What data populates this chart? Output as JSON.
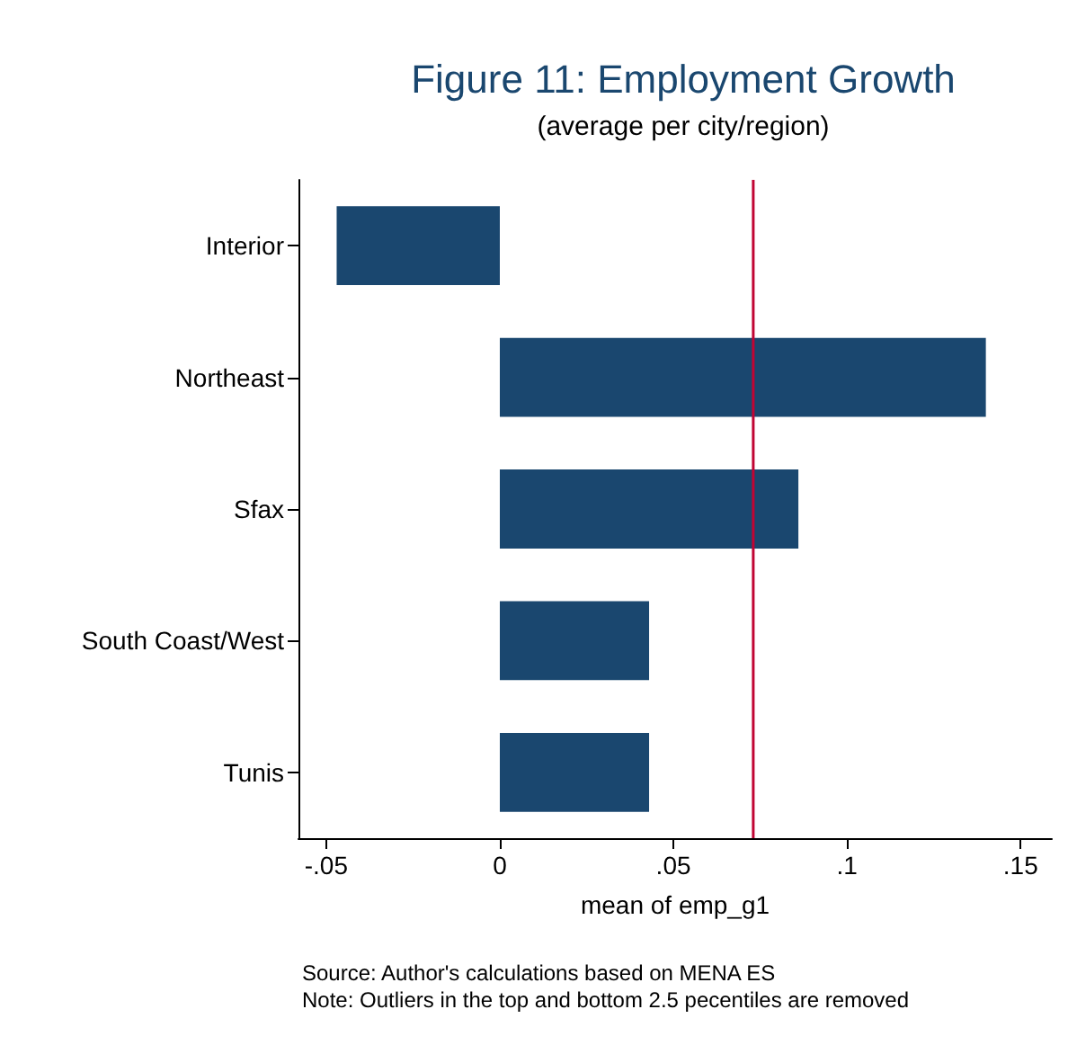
{
  "chart_data": {
    "type": "bar",
    "orientation": "horizontal",
    "title": "Figure 11: Employment Growth",
    "subtitle": "(average per city/region)",
    "xlabel": "mean of emp_g1",
    "categories": [
      "Interior",
      "Northeast",
      "Sfax",
      "South Coast/West",
      "Tunis"
    ],
    "values": [
      -0.047,
      0.14,
      0.086,
      0.043,
      0.043
    ],
    "color": "#1a476f",
    "xlim": [
      -0.058,
      0.159
    ],
    "xticks": [
      {
        "value": -0.05,
        "label": "-.05"
      },
      {
        "value": 0,
        "label": "0"
      },
      {
        "value": 0.05,
        "label": ".05"
      },
      {
        "value": 0.1,
        "label": ".1"
      },
      {
        "value": 0.15,
        "label": ".15"
      }
    ],
    "ref_lines": [
      {
        "axis": "x",
        "value": 0.073,
        "color": "#c10534"
      }
    ],
    "annotations": [
      "Source: Author's calculations based on MENA ES",
      "Note: Outliers in the top and bottom 2.5 pecentiles are removed"
    ],
    "data_labels": false
  }
}
